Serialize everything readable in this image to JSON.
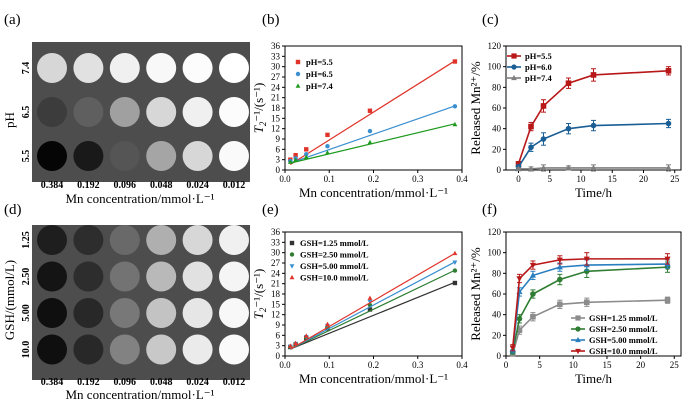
{
  "panels": {
    "a": {
      "label": "(a)",
      "group_label": "pH",
      "row_labels": [
        "7.4",
        "6.5",
        "5.5"
      ],
      "col_labels": [
        "0.384",
        "0.192",
        "0.096",
        "0.048",
        "0.024",
        "0.012"
      ],
      "xlabel": "Mn concentration/mmol·L⁻¹",
      "well_gray": [
        [
          215,
          225,
          240,
          248,
          252,
          255
        ],
        [
          60,
          95,
          160,
          215,
          240,
          252
        ],
        [
          5,
          25,
          85,
          165,
          215,
          250
        ]
      ]
    },
    "b": {
      "label": "(b)"
    },
    "c": {
      "label": "(c)"
    },
    "d": {
      "label": "(d)",
      "group_label": "GSH/(mmol/L)",
      "row_labels": [
        "1.25",
        "2.50",
        "5.00",
        "10.0"
      ],
      "col_labels": [
        "0.384",
        "0.192",
        "0.096",
        "0.048",
        "0.024",
        "0.012"
      ],
      "xlabel": "Mn concentration/mmol·L⁻¹",
      "well_gray": [
        [
          30,
          45,
          105,
          175,
          215,
          240
        ],
        [
          20,
          45,
          115,
          185,
          225,
          245
        ],
        [
          15,
          40,
          120,
          195,
          230,
          248
        ],
        [
          15,
          40,
          130,
          200,
          235,
          250
        ]
      ]
    },
    "e": {
      "label": "(e)"
    },
    "f": {
      "label": "(f)"
    }
  },
  "chart_data": [
    {
      "id": "b",
      "type": "scatter",
      "xlabel": "Mn concentration/mmol·L⁻¹",
      "ylabel_main": "T",
      "ylabel_sub": "2",
      "ylabel_rest": "⁻¹/(s⁻¹)",
      "xlim": [
        0,
        0.4
      ],
      "ylim": [
        0,
        36
      ],
      "xticks": [
        0.0,
        0.1,
        0.2,
        0.3,
        0.4
      ],
      "xtick_labels": [
        "0.0",
        "0.1",
        "0.2",
        "0.3",
        "0.4"
      ],
      "yticks": [
        0,
        3,
        6,
        9,
        12,
        15,
        18,
        21,
        24,
        27,
        30,
        33,
        36
      ],
      "ytick_labels": [
        "0",
        "3",
        "6",
        "9",
        "12",
        "15",
        "18",
        "21",
        "24",
        "27",
        "30",
        "33",
        "36"
      ],
      "legend_position": "top-left",
      "x": [
        0.012,
        0.024,
        0.048,
        0.096,
        0.192,
        0.384
      ],
      "series": [
        {
          "name": "pH=5.5",
          "color": "#e0342a",
          "marker": "square",
          "values": [
            3.0,
            4.3,
            6.0,
            10.2,
            17.2,
            31.5
          ],
          "fit": [
            1.6,
            31.7
          ]
        },
        {
          "name": "pH=6.5",
          "color": "#3a8fd0",
          "marker": "circle",
          "values": [
            2.6,
            3.4,
            4.6,
            6.9,
            11.3,
            18.5
          ],
          "fit": [
            2.0,
            18.6
          ]
        },
        {
          "name": "pH=7.4",
          "color": "#1f9a1f",
          "marker": "triangle",
          "values": [
            2.3,
            2.9,
            3.7,
            5.0,
            8.0,
            13.2
          ],
          "fit": [
            2.0,
            13.4
          ]
        }
      ]
    },
    {
      "id": "c",
      "type": "line",
      "xlabel": "Time/h",
      "ylabel": "Released Mn²⁺/%",
      "xlim": [
        -2,
        26
      ],
      "ylim": [
        0,
        120
      ],
      "xticks": [
        0,
        5,
        10,
        15,
        20,
        25
      ],
      "xtick_labels": [
        "0",
        "5",
        "10",
        "15",
        "20",
        "25"
      ],
      "yticks": [
        0,
        20,
        40,
        60,
        80,
        100,
        120
      ],
      "ytick_labels": [
        "0",
        "20",
        "40",
        "60",
        "80",
        "100",
        "120"
      ],
      "legend_position": "top-left",
      "x": [
        0,
        2,
        4,
        8,
        12,
        24
      ],
      "series": [
        {
          "name": "pH=5.5",
          "color": "#b81818",
          "marker": "square",
          "values": [
            6,
            42,
            62,
            84,
            92,
            96
          ],
          "errors": [
            2,
            4,
            6,
            5,
            6,
            4
          ]
        },
        {
          "name": "pH=6.0",
          "color": "#1a5e96",
          "marker": "circle",
          "values": [
            3,
            22,
            30,
            40,
            43,
            45
          ],
          "errors": [
            2,
            4,
            6,
            5,
            5,
            4
          ]
        },
        {
          "name": "pH=7.4",
          "color": "#7f7f7f",
          "marker": "triangle",
          "values": [
            1,
            1,
            2,
            2,
            2,
            2
          ],
          "errors": [
            1,
            2,
            3,
            2,
            3,
            3
          ]
        }
      ]
    },
    {
      "id": "e",
      "type": "scatter",
      "xlabel": "Mn concentration/mmol·L⁻¹",
      "ylabel_main": "T",
      "ylabel_sub": "2",
      "ylabel_rest": "⁻¹/(s⁻¹)",
      "xlim": [
        0,
        0.4
      ],
      "ylim": [
        0,
        36
      ],
      "xticks": [
        0.0,
        0.1,
        0.2,
        0.3,
        0.4
      ],
      "xtick_labels": [
        "0.0",
        "0.1",
        "0.2",
        "0.3",
        "0.4"
      ],
      "yticks": [
        0,
        3,
        6,
        9,
        12,
        15,
        18,
        21,
        24,
        27,
        30,
        33,
        36
      ],
      "ytick_labels": [
        "0",
        "3",
        "6",
        "9",
        "12",
        "15",
        "18",
        "21",
        "24",
        "27",
        "30",
        "33",
        "36"
      ],
      "legend_position": "top-left",
      "x": [
        0.012,
        0.024,
        0.048,
        0.096,
        0.192,
        0.384
      ],
      "series": [
        {
          "name": "GSH=1.25 mmol/L",
          "color": "#333333",
          "marker": "square",
          "values": [
            2.6,
            3.4,
            5.2,
            8.0,
            13.5,
            21.2
          ],
          "fit": [
            2.0,
            21.4
          ]
        },
        {
          "name": "GSH=2.50 mmol/L",
          "color": "#2e7d32",
          "marker": "circle",
          "values": [
            2.7,
            3.5,
            5.4,
            8.4,
            14.8,
            24.8
          ],
          "fit": [
            2.0,
            24.9
          ]
        },
        {
          "name": "GSH=5.00 mmol/L",
          "color": "#3a8fd0",
          "marker": "triangle-down",
          "values": [
            2.8,
            3.6,
            5.6,
            8.8,
            15.8,
            27.2
          ],
          "fit": [
            2.0,
            27.3
          ]
        },
        {
          "name": "GSH=10.0 mmol/L",
          "color": "#e0342a",
          "marker": "triangle",
          "values": [
            2.9,
            3.7,
            5.8,
            9.2,
            16.8,
            29.8
          ],
          "fit": [
            2.0,
            29.8
          ]
        }
      ]
    },
    {
      "id": "f",
      "type": "line",
      "xlabel": "Time/h",
      "ylabel": "Released Mn²⁺/%",
      "xlim": [
        0,
        26
      ],
      "ylim": [
        0,
        120
      ],
      "xticks": [
        0,
        5,
        10,
        15,
        20,
        25
      ],
      "xtick_labels": [
        "0",
        "5",
        "10",
        "15",
        "20",
        "25"
      ],
      "yticks": [
        0,
        20,
        40,
        60,
        80,
        100,
        120
      ],
      "ytick_labels": [
        "0",
        "20",
        "40",
        "60",
        "80",
        "100",
        "120"
      ],
      "legend_position": "bottom-right",
      "x": [
        1,
        2,
        4,
        8,
        12,
        24
      ],
      "series": [
        {
          "name": "GSH=1.25 mmol/L",
          "color": "#8c8c8c",
          "marker": "square",
          "values": [
            2,
            25,
            38,
            50,
            52,
            54
          ],
          "errors": [
            2,
            4,
            4,
            4,
            4,
            3
          ]
        },
        {
          "name": "GSH=2.50 mmol/L",
          "color": "#2e7d32",
          "marker": "circle",
          "values": [
            4,
            36,
            60,
            74,
            82,
            86
          ],
          "errors": [
            2,
            4,
            4,
            5,
            6,
            5
          ]
        },
        {
          "name": "GSH=5.00 mmol/L",
          "color": "#2a7fc0",
          "marker": "triangle",
          "values": [
            6,
            62,
            78,
            86,
            88,
            89
          ],
          "errors": [
            3,
            4,
            4,
            4,
            5,
            4
          ]
        },
        {
          "name": "GSH=10.0 mmol/L",
          "color": "#b81818",
          "marker": "triangle-down",
          "values": [
            8,
            75,
            88,
            93,
            94,
            94
          ],
          "errors": [
            3,
            4,
            4,
            4,
            6,
            5
          ]
        }
      ]
    }
  ]
}
